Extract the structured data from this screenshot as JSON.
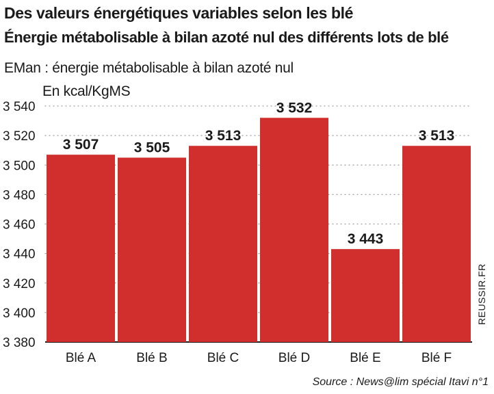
{
  "header": {
    "title": "Des valeurs énergétiques variables selon les blé",
    "subtitle": "Énergie métabolisable à bilan azoté nul des différents lots de blé",
    "note": "EMan : énergie métabolisable à bilan azoté nul",
    "unit": "En kcal/KgMS"
  },
  "footer": {
    "credit": "REUSSIR.FR",
    "source": "Source : News@lim spécial Itavi n°1"
  },
  "chart_data": {
    "type": "bar",
    "categories": [
      "Blé A",
      "Blé B",
      "Blé C",
      "Blé D",
      "Blé E",
      "Blé F"
    ],
    "values": [
      3507,
      3505,
      3513,
      3532,
      3443,
      3513
    ],
    "data_labels": [
      "3 507",
      "3 505",
      "3 513",
      "3 532",
      "3 443",
      "3 513"
    ],
    "ylim": [
      3380,
      3540
    ],
    "yticks": [
      3380,
      3400,
      3420,
      3440,
      3460,
      3480,
      3500,
      3520,
      3540
    ],
    "ytick_labels": [
      "3 380",
      "3 400",
      "3 420",
      "3 440",
      "3 460",
      "3 480",
      "3 500",
      "3 520",
      "3 540"
    ],
    "bar_color": "#d12e2e",
    "grid": true
  }
}
